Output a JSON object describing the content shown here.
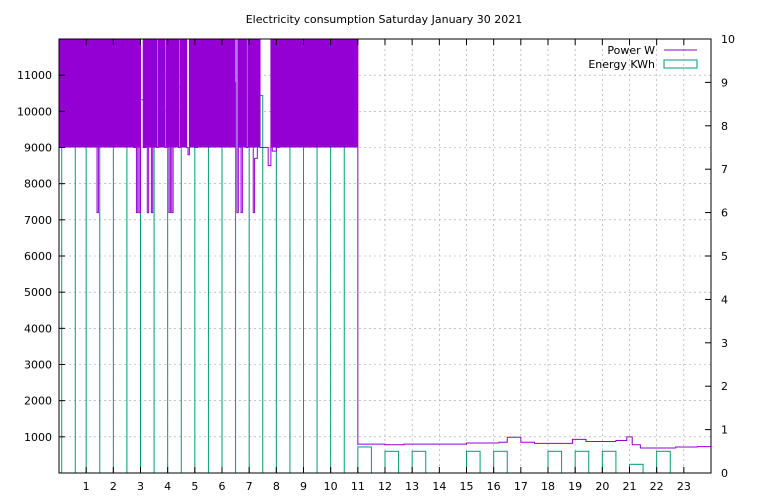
{
  "chart_data": {
    "type": "bar",
    "title": "Electricity consumption Saturday January 30 2021",
    "xlabel": "",
    "ylabel": "",
    "y2label": "",
    "x_range": [
      0,
      24
    ],
    "ylim": [
      0,
      12000
    ],
    "y2lim": [
      0,
      10
    ],
    "grid": true,
    "legend_position": "top-right",
    "x_ticks": [
      "1",
      "2",
      "3",
      "4",
      "5",
      "6",
      "7",
      "8",
      "9",
      "10",
      "11",
      "12",
      "13",
      "14",
      "15",
      "16",
      "17",
      "18",
      "19",
      "20",
      "21",
      "22",
      "23"
    ],
    "y_ticks": [
      "1000",
      "2000",
      "3000",
      "4000",
      "5000",
      "6000",
      "7000",
      "8000",
      "9000",
      "10000",
      "11000"
    ],
    "y2_ticks": [
      "0",
      "1",
      "2",
      "3",
      "4",
      "5",
      "6",
      "7",
      "8",
      "9",
      "10"
    ],
    "colors": {
      "power": "#9400d3",
      "energy": "#009e73",
      "grid": "#a0a0a0"
    },
    "series": [
      {
        "name": "Energy KWh",
        "axis": "y2",
        "style": "boxes",
        "points": [
          [
            0.1,
            9.1
          ],
          [
            1.0,
            9.1
          ],
          [
            2.0,
            8.8
          ],
          [
            3.0,
            8.6
          ],
          [
            4.0,
            8.9
          ],
          [
            5.0,
            9.2
          ],
          [
            6.0,
            9.0
          ],
          [
            7.0,
            8.7
          ],
          [
            8.0,
            9.1
          ],
          [
            9.0,
            9.4
          ],
          [
            10.0,
            9.4
          ],
          [
            11.0,
            0.6
          ],
          [
            12.0,
            0.5
          ],
          [
            13.0,
            0.5
          ],
          [
            15.0,
            0.5
          ],
          [
            16.0,
            0.5
          ],
          [
            18.0,
            0.5
          ],
          [
            19.0,
            0.5
          ],
          [
            20.0,
            0.5
          ],
          [
            21.0,
            0.2
          ],
          [
            22.0,
            0.5
          ]
        ]
      },
      {
        "name": "Power W",
        "axis": "y",
        "style": "steps",
        "points": [
          [
            0,
            9000
          ],
          [
            0,
            12000
          ],
          [
            1.0,
            9000
          ],
          [
            1.0,
            12000
          ],
          [
            1.4,
            7200
          ],
          [
            1.45,
            12000
          ],
          [
            2.7,
            12000
          ],
          [
            2.75,
            9000
          ],
          [
            2.85,
            7200
          ],
          [
            2.9,
            12000
          ],
          [
            2.95,
            7200
          ],
          [
            3.0,
            12000
          ],
          [
            3.1,
            9000
          ],
          [
            3.2,
            12000
          ],
          [
            3.25,
            7200
          ],
          [
            3.3,
            12000
          ],
          [
            3.4,
            7200
          ],
          [
            3.45,
            12000
          ],
          [
            3.6,
            9000
          ],
          [
            3.65,
            12000
          ],
          [
            3.9,
            9000
          ],
          [
            3.95,
            12000
          ],
          [
            4.05,
            7200
          ],
          [
            4.1,
            12000
          ],
          [
            4.15,
            7200
          ],
          [
            4.2,
            12000
          ],
          [
            4.4,
            9000
          ],
          [
            4.45,
            12000
          ],
          [
            4.7,
            9000
          ],
          [
            4.75,
            8800
          ],
          [
            4.8,
            12000
          ],
          [
            5.0,
            9000
          ],
          [
            5.1,
            12000
          ],
          [
            6.5,
            12000
          ],
          [
            6.55,
            7200
          ],
          [
            6.6,
            12000
          ],
          [
            6.7,
            7200
          ],
          [
            6.75,
            12000
          ],
          [
            6.9,
            9000
          ],
          [
            6.95,
            12000
          ],
          [
            7.15,
            7200
          ],
          [
            7.2,
            8700
          ],
          [
            7.3,
            12000
          ],
          [
            7.4,
            9000
          ],
          [
            7.6,
            9000
          ],
          [
            7.7,
            8500
          ],
          [
            7.8,
            12000
          ],
          [
            7.85,
            8900
          ],
          [
            8.0,
            12000
          ],
          [
            8.05,
            9000
          ],
          [
            8.1,
            12000
          ],
          [
            11.0,
            12000
          ],
          [
            11.0,
            9000
          ],
          [
            11.0,
            800
          ],
          [
            12.0,
            780
          ],
          [
            12.7,
            800
          ],
          [
            15.0,
            830
          ],
          [
            16.2,
            850
          ],
          [
            16.5,
            990
          ],
          [
            17.0,
            850
          ],
          [
            17.5,
            820
          ],
          [
            18.9,
            930
          ],
          [
            19.4,
            870
          ],
          [
            20.5,
            900
          ],
          [
            20.9,
            1000
          ],
          [
            21.1,
            780
          ],
          [
            21.4,
            690
          ],
          [
            22.7,
            720
          ],
          [
            23.5,
            730
          ],
          [
            24.0,
            730
          ]
        ]
      }
    ]
  }
}
